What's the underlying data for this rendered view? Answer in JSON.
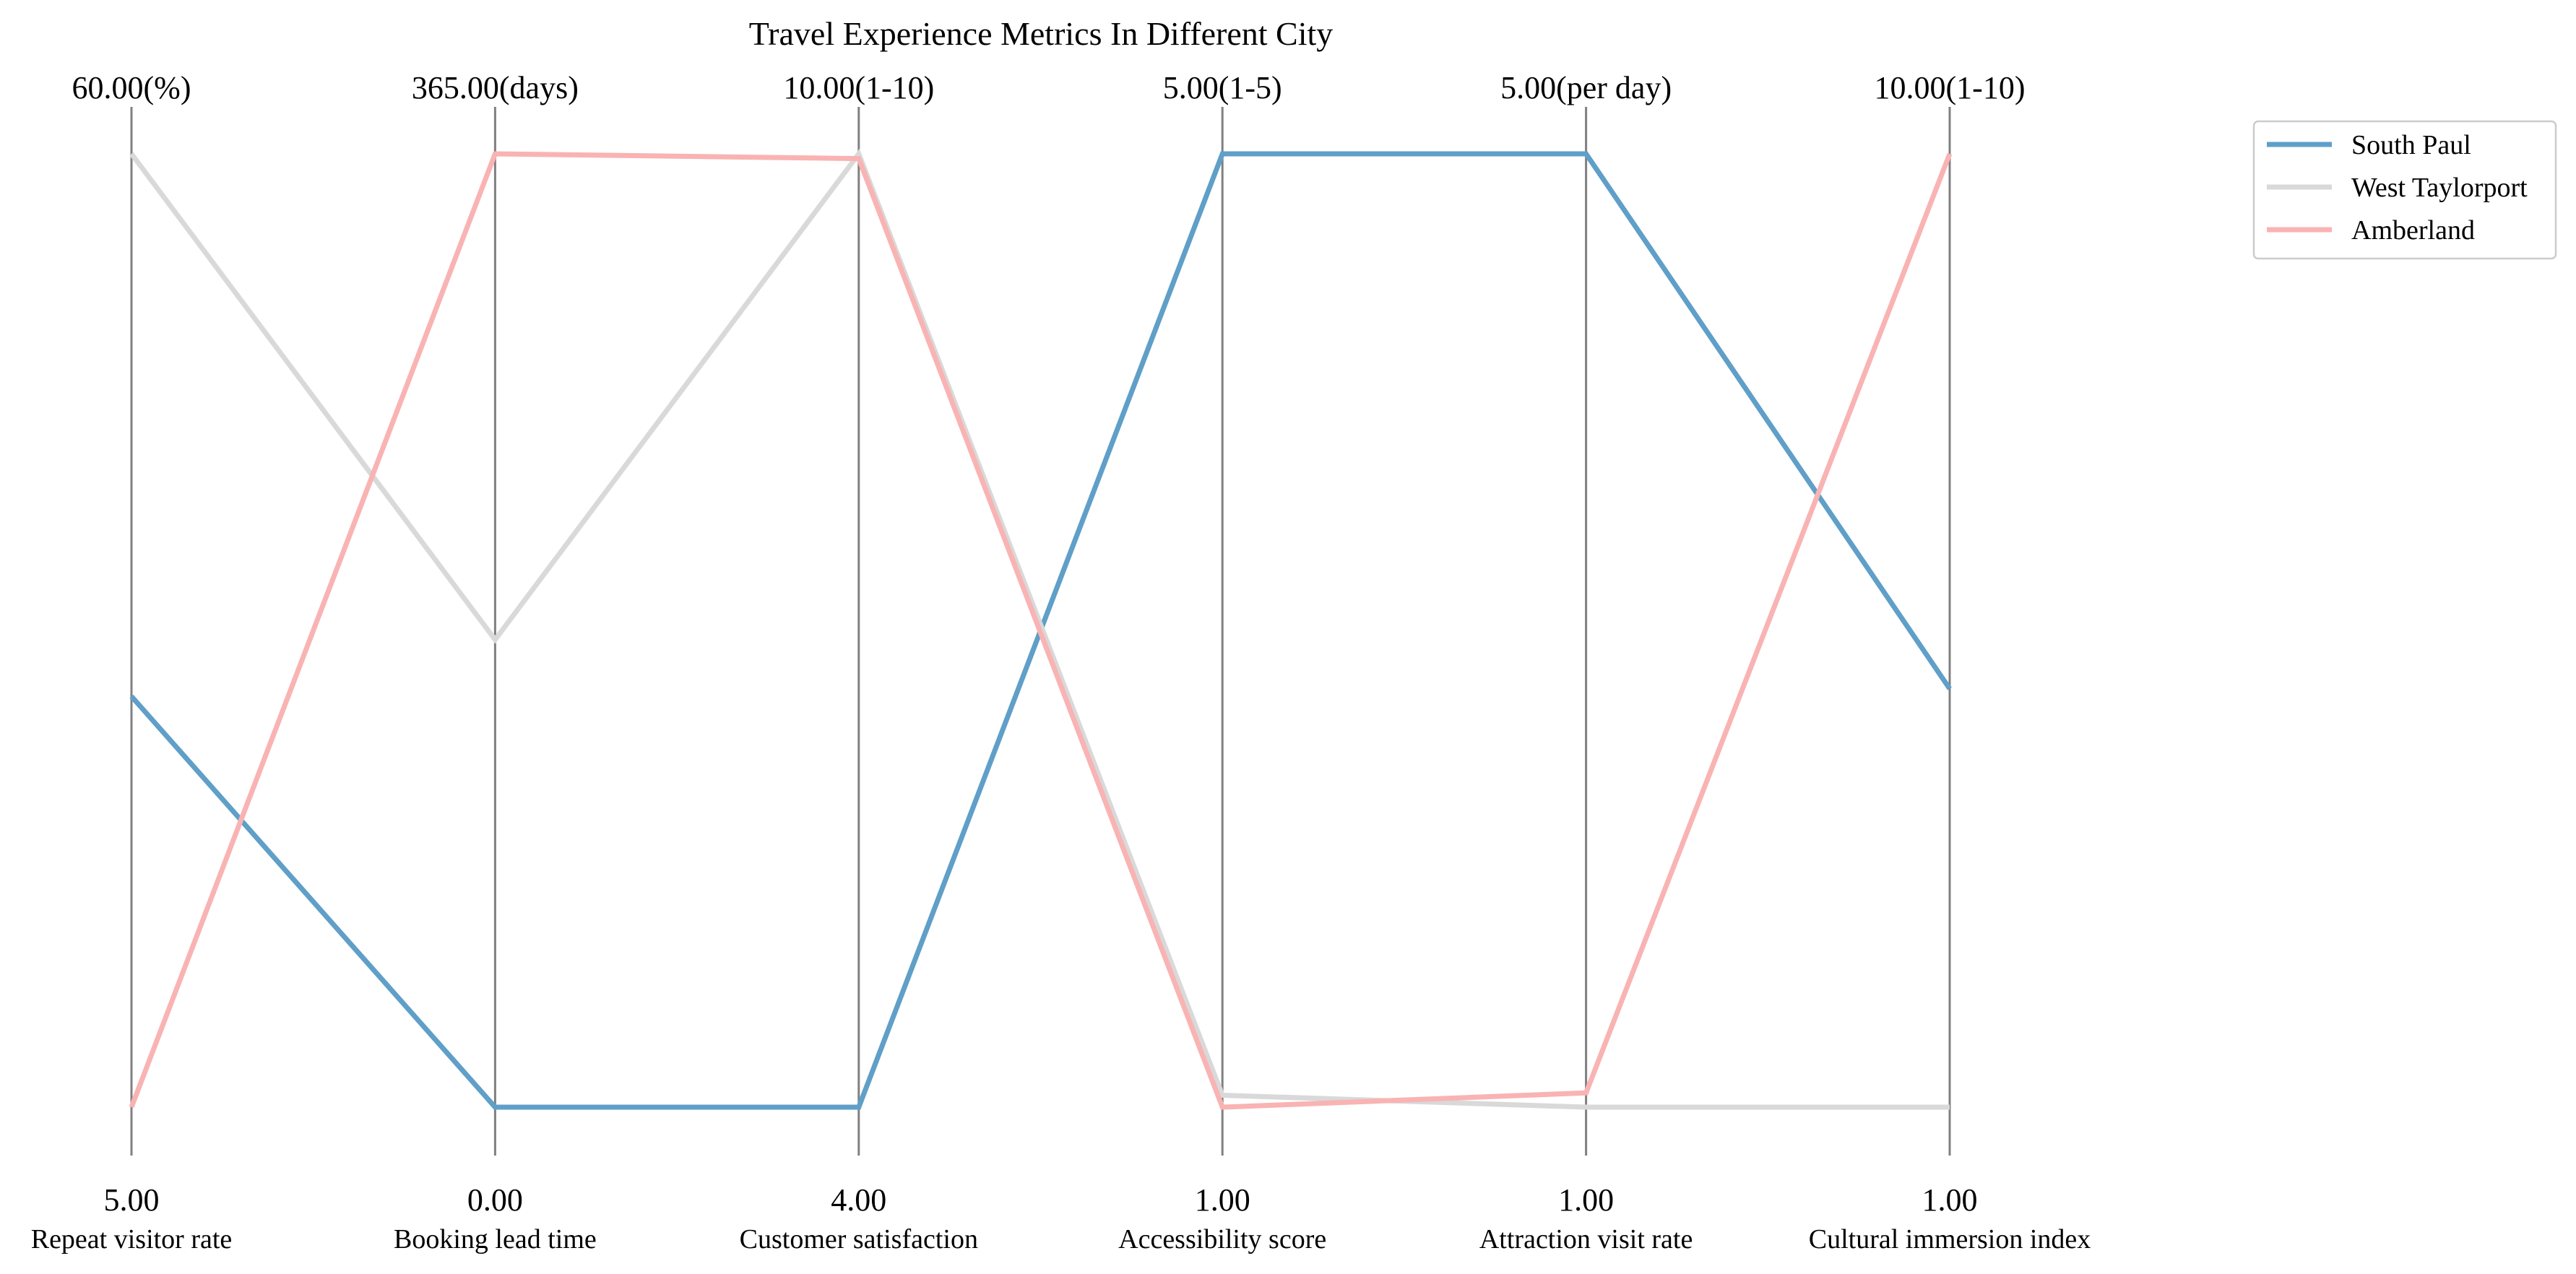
{
  "chart_data": {
    "type": "parallel-coordinates",
    "title": "Travel Experience Metrics In Different City",
    "axes": [
      {
        "label": "Repeat visitor rate",
        "min": 5,
        "max": 60,
        "min_label": "5.00",
        "max_label": "60.00(%)"
      },
      {
        "label": "Booking lead time",
        "min": 0,
        "max": 365,
        "min_label": "0.00",
        "max_label": "365.00(days)"
      },
      {
        "label": "Customer satisfaction",
        "min": 4,
        "max": 10,
        "min_label": "4.00",
        "max_label": "10.00(1-10)"
      },
      {
        "label": "Accessibility score",
        "min": 1,
        "max": 5,
        "min_label": "1.00",
        "max_label": "5.00(1-5)"
      },
      {
        "label": "Attraction visit rate",
        "min": 1,
        "max": 5,
        "min_label": "1.00",
        "max_label": "5.00(per day)"
      },
      {
        "label": "Cultural immersion index",
        "min": 1,
        "max": 10,
        "min_label": "1.00",
        "max_label": "10.00(1-10)"
      }
    ],
    "series": [
      {
        "name": "South Paul",
        "color": "#5f9fc8",
        "values": [
          28.7,
          0,
          4,
          5,
          5,
          4.95
        ]
      },
      {
        "name": "West Taylorport",
        "color": "#d9d9d9",
        "values": [
          60,
          179,
          10,
          1.05,
          1,
          1
        ]
      },
      {
        "name": "Amberland",
        "color": "#f9b3b3",
        "values": [
          5,
          365,
          9.97,
          1,
          1.06,
          10
        ]
      }
    ],
    "legend_position": "top-right",
    "grid": false
  }
}
